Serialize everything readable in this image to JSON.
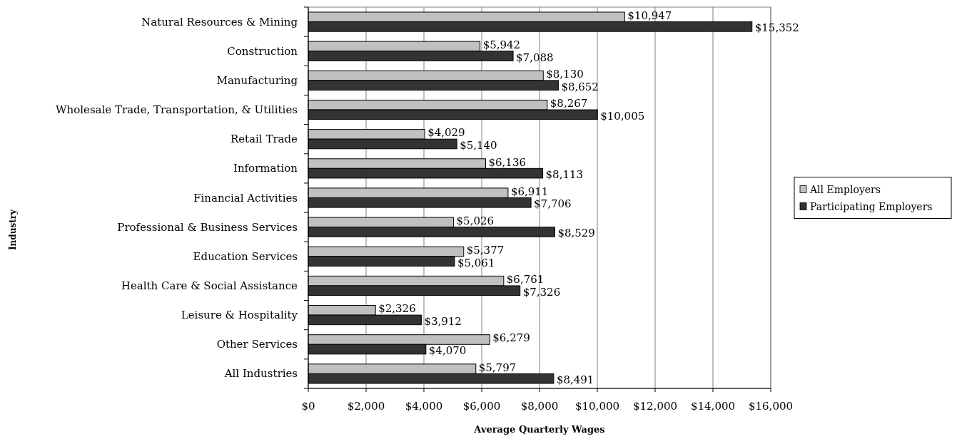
{
  "chart_data": {
    "type": "bar",
    "orientation": "horizontal",
    "xlabel": "Average Quarterly Wages",
    "ylabel": "Industry",
    "categories": [
      "Natural Resources & Mining",
      "Construction",
      "Manufacturing",
      "Wholesale Trade, Transportation, & Utilities",
      "Retail Trade",
      "Information",
      "Financial Activities",
      "Professional & Business Services",
      "Education Services",
      "Health Care & Social Assistance",
      "Leisure & Hospitality",
      "Other Services",
      "All Industries"
    ],
    "series": [
      {
        "name": "All Employers",
        "color": "#c0c0c0",
        "values": [
          10947,
          5942,
          8130,
          8267,
          4029,
          6136,
          6911,
          5026,
          5377,
          6761,
          2326,
          6279,
          5797
        ],
        "value_labels": [
          "$10,947",
          "$5,942",
          "$8,130",
          "$8,267",
          "$4,029",
          "$6,136",
          "$6,911",
          "$5,026",
          "$5,377",
          "$6,761",
          "$2,326",
          "$6,279",
          "$5,797"
        ]
      },
      {
        "name": "Participating Employers",
        "color": "#333333",
        "values": [
          15352,
          7088,
          8652,
          10005,
          5140,
          8113,
          7706,
          8529,
          5061,
          7326,
          3912,
          4070,
          8491
        ],
        "value_labels": [
          "$15,352",
          "$7,088",
          "$8,652",
          "$10,005",
          "$5,140",
          "$8,113",
          "$7,706",
          "$8,529",
          "$5,061",
          "$7,326",
          "$3,912",
          "$4,070",
          "$8,491"
        ]
      }
    ],
    "xlim": [
      0,
      16000
    ],
    "xticks": [
      {
        "value": 0,
        "label": "$0"
      },
      {
        "value": 2000,
        "label": "$2,000"
      },
      {
        "value": 4000,
        "label": "$4,000"
      },
      {
        "value": 6000,
        "label": "$6,000"
      },
      {
        "value": 8000,
        "label": "$8,000"
      },
      {
        "value": 10000,
        "label": "$10,000"
      },
      {
        "value": 12000,
        "label": "$12,000"
      },
      {
        "value": 14000,
        "label": "$14,000"
      },
      {
        "value": 16000,
        "label": "$16,000"
      }
    ],
    "grid": "x",
    "legend": "right"
  }
}
